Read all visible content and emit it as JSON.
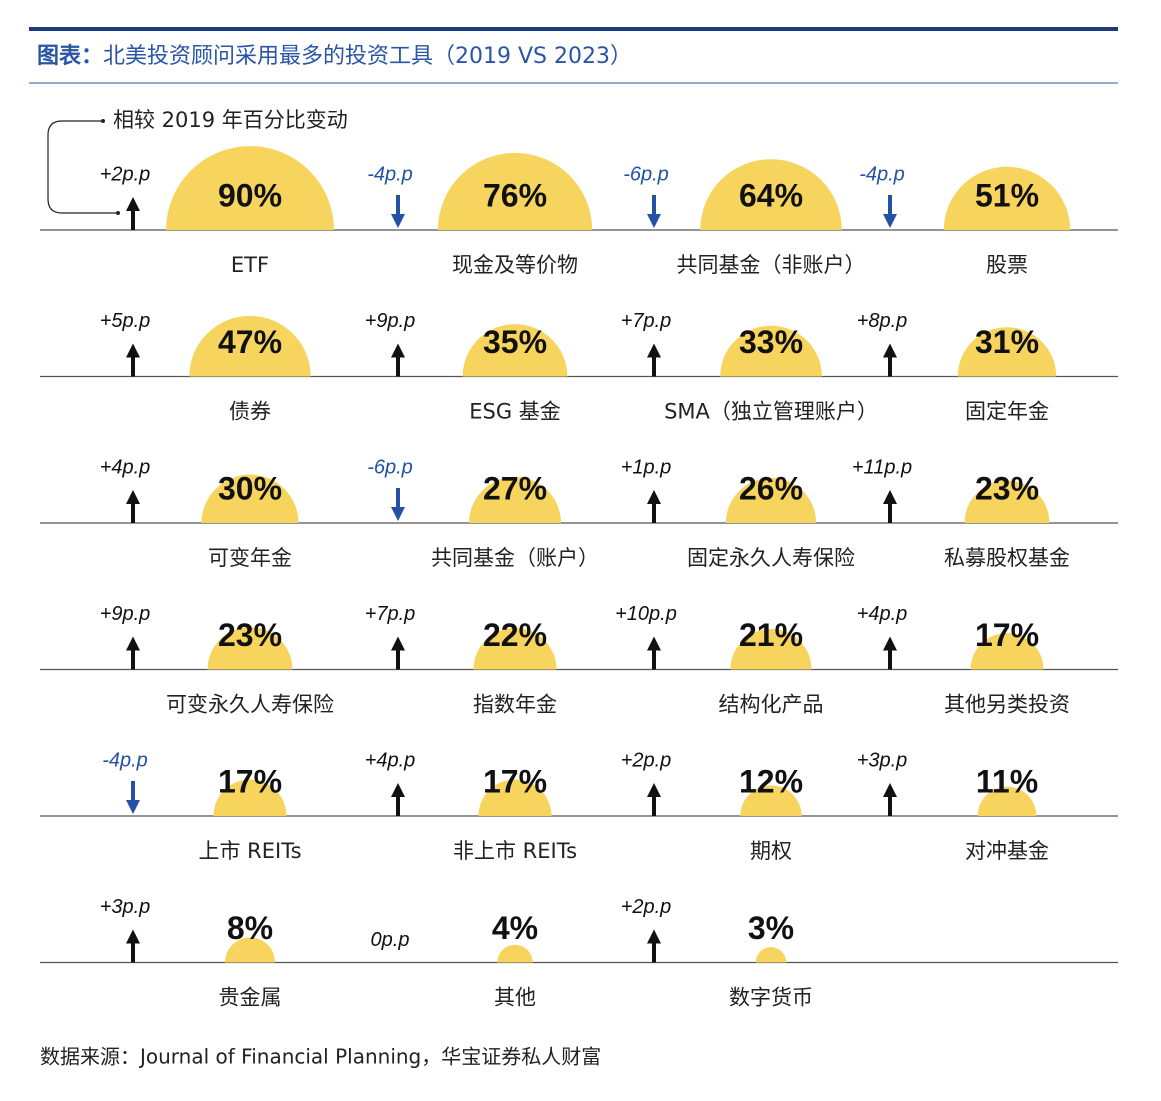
{
  "chart_data": {
    "type": "semicircle",
    "title_prefix": "图表：",
    "title": "北美投资顾问采用最多的投资工具（2019 VS 2023）",
    "note": "相较 2019 年百分比变动",
    "source": "数据来源：Journal of Financial Planning，华宝证券私人财富",
    "color": "#f7d45e",
    "up_color": "#111111",
    "down_color": "#2451a6",
    "categories": [
      "ETF",
      "现金及等价物",
      "共同基金（非账户）",
      "股票",
      "债券",
      "ESG 基金",
      "SMA（独立管理账户）",
      "固定年金",
      "可变年金",
      "共同基金（账户）",
      "固定永久人寿保险",
      "私募股权基金",
      "可变永久人寿保险",
      "指数年金",
      "结构化产品",
      "其他另类投资",
      "上市 REITs",
      "非上市 REITs",
      "期权",
      "对冲基金",
      "贵金属",
      "其他",
      "数字货币"
    ],
    "values": [
      90,
      76,
      64,
      51,
      47,
      35,
      33,
      31,
      30,
      27,
      26,
      23,
      23,
      22,
      21,
      17,
      17,
      17,
      12,
      11,
      8,
      4,
      3
    ],
    "value_labels": [
      "90%",
      "76%",
      "64%",
      "51%",
      "47%",
      "35%",
      "33%",
      "31%",
      "30%",
      "27%",
      "26%",
      "23%",
      "23%",
      "22%",
      "21%",
      "17%",
      "17%",
      "17%",
      "12%",
      "11%",
      "8%",
      "4%",
      "3%"
    ],
    "changes": [
      2,
      -4,
      -6,
      -4,
      5,
      9,
      7,
      8,
      4,
      -6,
      1,
      11,
      9,
      7,
      10,
      4,
      -4,
      4,
      2,
      3,
      3,
      0,
      2
    ],
    "change_labels": [
      "+2p.p",
      "-4p.p",
      "-6p.p",
      "-4p.p",
      "+5p.p",
      "+9p.p",
      "+7p.p",
      "+8p.p",
      "+4p.p",
      "-6p.p",
      "+1p.p",
      "+11p.p",
      "+9p.p",
      "+7p.p",
      "+10p.p",
      "+4p.p",
      "-4p.p",
      "+4p.p",
      "+2p.p",
      "+3p.p",
      "+3p.p",
      "0p.p",
      "+2p.p"
    ]
  }
}
